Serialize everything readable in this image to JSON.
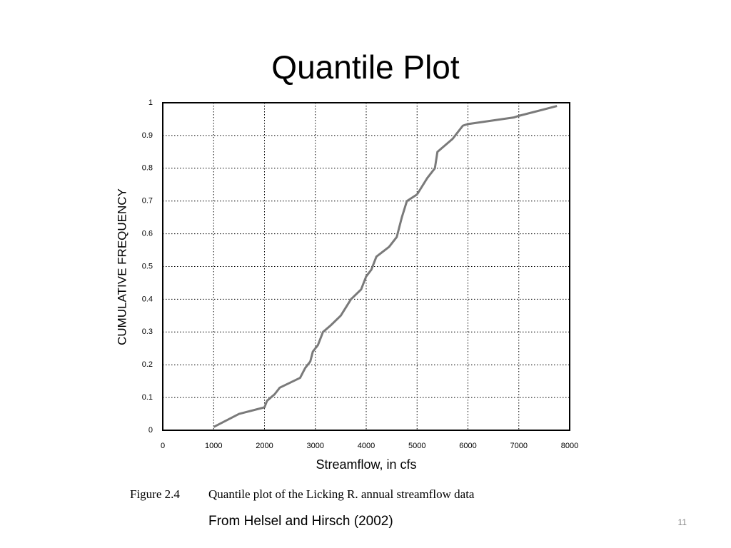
{
  "slide": {
    "title": "Quantile Plot",
    "caption_label": "Figure 2.4",
    "caption_text": "Quantile plot of the Licking R. annual streamflow data",
    "source": "From Helsel and Hirsch (2002)",
    "page_number": "11"
  },
  "chart_data": {
    "type": "line",
    "x_label": "Streamflow, in cfs",
    "y_label": "CUMULATIVE FREQUENCY",
    "x": [
      1000,
      1500,
      2000,
      2050,
      2200,
      2300,
      2700,
      2800,
      2900,
      2950,
      3050,
      3150,
      3300,
      3500,
      3700,
      3900,
      4000,
      4100,
      4200,
      4450,
      4600,
      4700,
      4800,
      5000,
      5200,
      5350,
      5400,
      5700,
      5900,
      6000,
      6900,
      7000,
      7750
    ],
    "values": [
      0.01,
      0.05,
      0.07,
      0.09,
      0.11,
      0.13,
      0.16,
      0.19,
      0.21,
      0.24,
      0.26,
      0.3,
      0.32,
      0.35,
      0.4,
      0.43,
      0.47,
      0.49,
      0.53,
      0.56,
      0.59,
      0.65,
      0.7,
      0.72,
      0.77,
      0.8,
      0.85,
      0.89,
      0.93,
      0.935,
      0.955,
      0.96,
      0.99
    ],
    "color": "#7a7a7a",
    "xlim": [
      0,
      8000
    ],
    "xticks": [
      0,
      1000,
      2000,
      3000,
      4000,
      5000,
      6000,
      7000,
      8000
    ],
    "ylim": [
      0,
      1
    ],
    "yticks": [
      0,
      0.1,
      0.2,
      0.3,
      0.4,
      0.5,
      0.6,
      0.7,
      0.8,
      0.9,
      1
    ],
    "grid": true
  }
}
